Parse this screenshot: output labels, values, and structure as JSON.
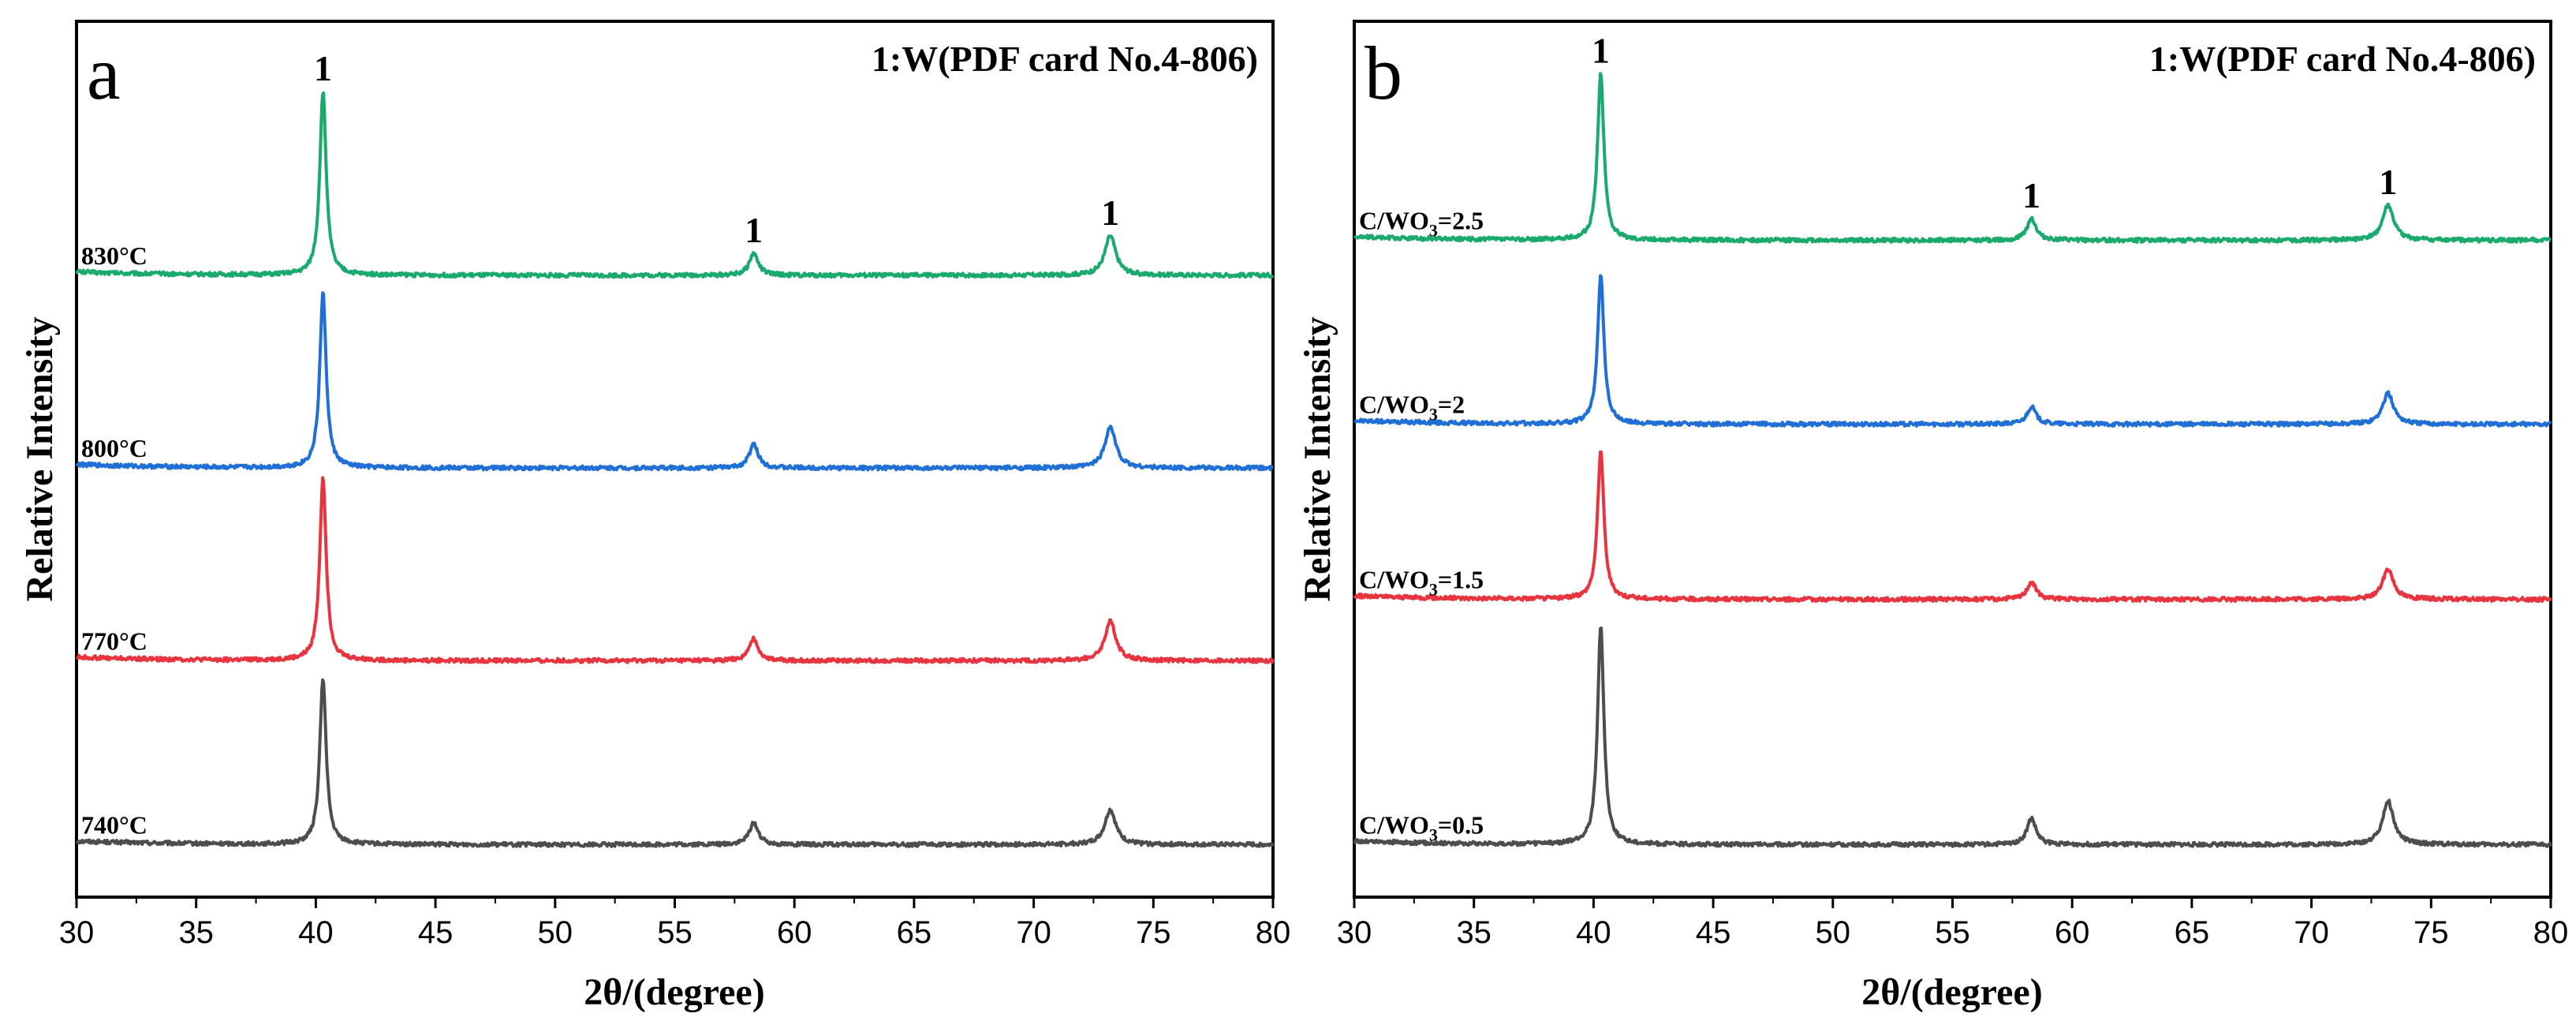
{
  "chart_data": [
    {
      "type": "line",
      "panel_label": "a",
      "card_label": "1:W(PDF card No.4-806)",
      "xlabel": "2θ/(degree)",
      "ylabel": "Relative Intensity",
      "xlim": [
        30,
        80
      ],
      "xticks": [
        30,
        35,
        40,
        45,
        50,
        55,
        60,
        65,
        70,
        75,
        80
      ],
      "y_ticks_shown": false,
      "peaks": [
        {
          "position": 40.3,
          "fwhm": 0.32
        },
        {
          "position": 58.3,
          "fwhm": 0.45
        },
        {
          "position": 73.2,
          "fwhm": 0.55
        }
      ],
      "peak_labels": [
        {
          "x": 40.3,
          "text": "1"
        },
        {
          "x": 58.3,
          "text": "1"
        },
        {
          "x": 73.2,
          "text": "1"
        }
      ],
      "series": [
        {
          "name": "740°C",
          "color": "#4d4d4d",
          "baseline": 0.06,
          "peak_heights": [
            0.19,
            0.025,
            0.04
          ]
        },
        {
          "name": "770°C",
          "color": "#e8343f",
          "baseline": 0.27,
          "peak_heights": [
            0.21,
            0.025,
            0.045
          ]
        },
        {
          "name": "800°C",
          "color": "#1f6fd6",
          "baseline": 0.49,
          "peak_heights": [
            0.2,
            0.027,
            0.047
          ]
        },
        {
          "name": "830°C",
          "color": "#1aaa6e",
          "baseline": 0.71,
          "peak_heights": [
            0.21,
            0.025,
            0.045
          ]
        }
      ]
    },
    {
      "type": "line",
      "panel_label": "b",
      "card_label": "1:W(PDF card No.4-806)",
      "xlabel": "2θ/(degree)",
      "ylabel": "Relative Intensity",
      "xlim": [
        30,
        80
      ],
      "xticks": [
        30,
        35,
        40,
        45,
        50,
        55,
        60,
        65,
        70,
        75,
        80
      ],
      "y_ticks_shown": false,
      "peaks": [
        {
          "position": 40.3,
          "fwhm": 0.32
        },
        {
          "position": 58.3,
          "fwhm": 0.45
        },
        {
          "position": 73.2,
          "fwhm": 0.55
        }
      ],
      "peak_labels": [
        {
          "x": 40.3,
          "text": "1"
        },
        {
          "x": 58.3,
          "text": "1"
        },
        {
          "x": 73.2,
          "text": "1"
        }
      ],
      "series": [
        {
          "name": "C/WO3=0.5",
          "name_main": "C/WO",
          "name_sub": "3",
          "name_tail": "=0.5",
          "color": "#4d4d4d",
          "baseline": 0.06,
          "peak_heights": [
            0.25,
            0.03,
            0.05
          ]
        },
        {
          "name": "C/WO3=1.5",
          "name_main": "C/WO",
          "name_sub": "3",
          "name_tail": "=1.5",
          "color": "#e8343f",
          "baseline": 0.34,
          "peak_heights": [
            0.17,
            0.02,
            0.035
          ]
        },
        {
          "name": "C/WO3=2",
          "name_main": "C/WO",
          "name_sub": "3",
          "name_tail": "=2",
          "color": "#1f6fd6",
          "baseline": 0.54,
          "peak_heights": [
            0.17,
            0.02,
            0.035
          ]
        },
        {
          "name": "C/WO3=2.5",
          "name_main": "C/WO",
          "name_sub": "3",
          "name_tail": "=2.5",
          "color": "#1aaa6e",
          "baseline": 0.75,
          "peak_heights": [
            0.19,
            0.025,
            0.04
          ]
        }
      ]
    }
  ]
}
